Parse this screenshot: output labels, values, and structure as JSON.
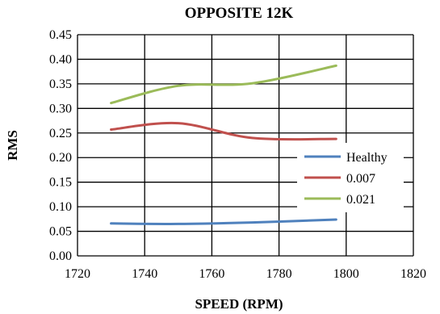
{
  "chart_data": {
    "type": "line",
    "title": "OPPOSITE 12K",
    "xlabel": "SPEED (RPM)",
    "ylabel": "RMS",
    "xlim": [
      1720,
      1820
    ],
    "ylim": [
      0,
      0.45
    ],
    "xticks": [
      1720,
      1740,
      1760,
      1780,
      1800,
      1820
    ],
    "xtick_labels": [
      "1720",
      "1740",
      "1760",
      "1780",
      "1800",
      "1820"
    ],
    "yticks": [
      0,
      0.05,
      0.1,
      0.15,
      0.2,
      0.25,
      0.3,
      0.35,
      0.4,
      0.45
    ],
    "ytick_labels": [
      "0.00",
      "0.05",
      "0.10",
      "0.15",
      "0.20",
      "0.25",
      "0.30",
      "0.35",
      "0.40",
      "0.45"
    ],
    "grid": true,
    "smooth": true,
    "legend_position": "right",
    "series": [
      {
        "name": "Healthy",
        "color": "#4f81bd",
        "x": [
          1730,
          1750,
          1772,
          1797
        ],
        "y": [
          0.066,
          0.065,
          0.068,
          0.074
        ]
      },
      {
        "name": "0.007",
        "color": "#c0504d",
        "x": [
          1730,
          1750,
          1772,
          1797
        ],
        "y": [
          0.257,
          0.27,
          0.24,
          0.238
        ]
      },
      {
        "name": "0.021",
        "color": "#9bbb59",
        "x": [
          1730,
          1750,
          1772,
          1797
        ],
        "y": [
          0.311,
          0.346,
          0.351,
          0.387
        ]
      }
    ]
  }
}
